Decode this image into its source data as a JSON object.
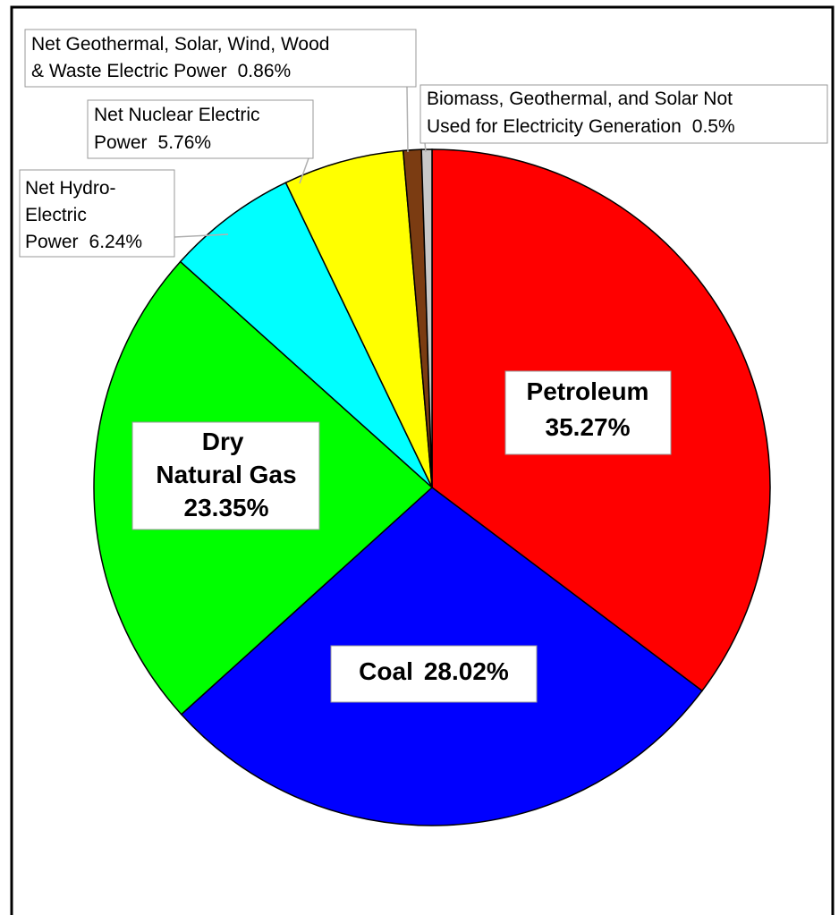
{
  "chart_data": {
    "type": "pie",
    "categories": [
      "Petroleum",
      "Coal",
      "Dry Natural Gas",
      "Net Hydro-Electric Power",
      "Net Nuclear Electric Power",
      "Net Geothermal, Solar, Wind, Wood & Waste Electric Power",
      "Biomass, Geothermal, and Solar Not Used for Electricity Generation"
    ],
    "values": [
      35.27,
      28.02,
      23.35,
      6.24,
      5.76,
      0.86,
      0.5
    ],
    "value_labels": [
      "35.27%",
      "28.02%",
      "23.35%",
      "6.24%",
      "5.76%",
      "0.86%",
      "0.5%"
    ],
    "colors": [
      "#ff0000",
      "#0000ff",
      "#00ff00",
      "#00ffff",
      "#ffff00",
      "#7b3c12",
      "#c8c8c8"
    ]
  }
}
